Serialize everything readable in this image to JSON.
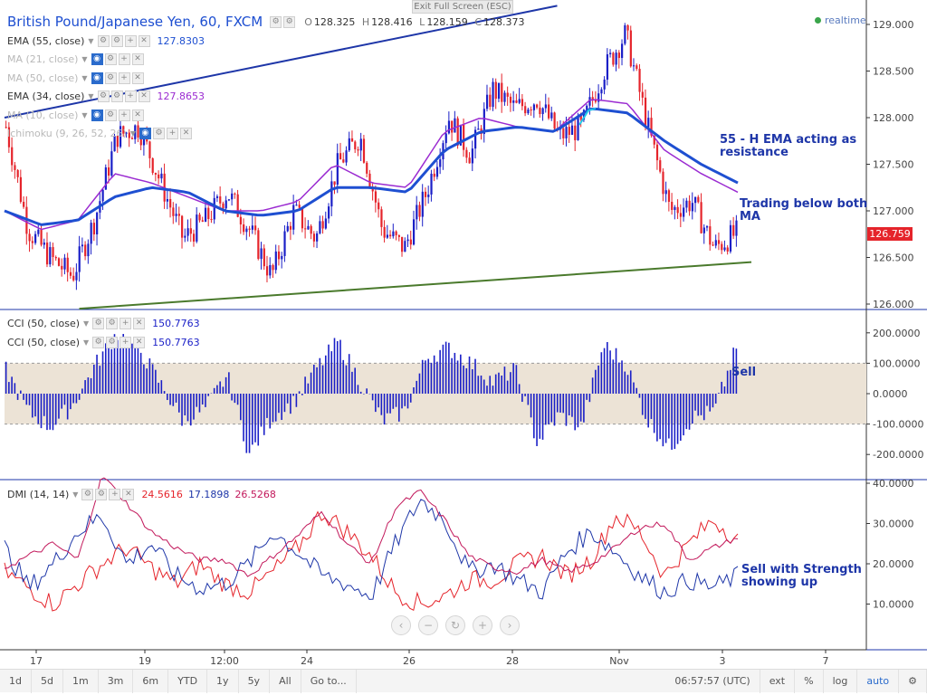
{
  "header": {
    "title": "British Pound/Japanese Yen, 60, FXCM",
    "ohlc": [
      {
        "k": "O",
        "v": "128.325"
      },
      {
        "k": "H",
        "v": "128.416"
      },
      {
        "k": "L",
        "v": "128.159"
      },
      {
        "k": "C",
        "v": "128.373"
      }
    ],
    "exit_fullscreen": "Exit Full Screen (ESC)",
    "realtime": "realtime",
    "last_price": "126.759"
  },
  "legend": [
    {
      "name": "EMA (55, close)",
      "value": "127.8303",
      "color": "#1e4fd1",
      "dim": false
    },
    {
      "name": "MA (21, close)",
      "value": "",
      "color": "#999999",
      "dim": true
    },
    {
      "name": "MA (50, close)",
      "value": "",
      "color": "#999999",
      "dim": true
    },
    {
      "name": "EMA (34, close)",
      "value": "127.8653",
      "color": "#9b2bd1",
      "dim": false
    },
    {
      "name": "MA (10, close)",
      "value": "",
      "color": "#999999",
      "dim": true
    },
    {
      "name": "Ichimoku (9, 26, 52, 26)",
      "value": "",
      "color": "#999999",
      "dim": true
    }
  ],
  "cci_legend": [
    {
      "name": "CCI (50, close)",
      "value": "150.7763"
    },
    {
      "name": "CCI (50, close)",
      "value": "150.7763"
    }
  ],
  "dmi_legend": {
    "name": "DMI (14, 14)",
    "values": [
      {
        "v": "24.5616",
        "color": "#e5242b"
      },
      {
        "v": "17.1898",
        "color": "#1e36a8"
      },
      {
        "v": "26.5268",
        "color": "#c2185b"
      }
    ]
  },
  "annotations": {
    "ema_resistance": [
      "55 - H EMA acting as",
      "resistance"
    ],
    "below_ma": [
      "Trading below both",
      "MA"
    ],
    "cci_sell": "Sell",
    "dmi_sell": [
      "Sell with Strength",
      "showing up"
    ]
  },
  "bottom_bar": {
    "ranges": [
      "1d",
      "5d",
      "1m",
      "3m",
      "6m",
      "YTD",
      "1y",
      "5y",
      "All",
      "Go to..."
    ],
    "clock": "06:57:57 (UTC)",
    "right": [
      "ext",
      "%",
      "log",
      "auto"
    ]
  },
  "chart_data": [
    {
      "type": "candlestick",
      "title": "British Pound/Japanese Yen, 60, FXCM",
      "ylim": [
        126.0,
        129.0
      ],
      "yticks": [
        "129.000",
        "128.500",
        "128.000",
        "127.500",
        "127.000",
        "126.500",
        "126.000"
      ],
      "xticks": [
        "17",
        "19",
        "12:00",
        "24",
        "26",
        "28",
        "Nov",
        "3",
        "7"
      ],
      "close_path": [
        127.9,
        126.8,
        126.5,
        126.3,
        126.9,
        127.8,
        127.9,
        127.3,
        126.7,
        126.9,
        127.2,
        126.8,
        126.3,
        127.0,
        126.7,
        127.5,
        127.8,
        126.8,
        126.6,
        127.2,
        128.0,
        127.6,
        128.3,
        128.1,
        128.2,
        127.8,
        127.9,
        128.5,
        128.9,
        127.9,
        127.0,
        127.1,
        126.6,
        126.76
      ],
      "ema55_path": [
        127.0,
        126.85,
        126.9,
        127.15,
        127.25,
        127.2,
        127.0,
        126.95,
        127.0,
        127.25,
        127.25,
        127.2,
        127.65,
        127.85,
        127.9,
        127.85,
        128.1,
        128.05,
        127.75,
        127.5,
        127.3
      ],
      "ema34_path": [
        127.0,
        126.8,
        126.9,
        127.4,
        127.3,
        127.15,
        127.0,
        127.0,
        127.1,
        127.5,
        127.3,
        127.25,
        127.85,
        128.0,
        127.9,
        127.85,
        128.2,
        128.15,
        127.65,
        127.4,
        127.2
      ],
      "series": [
        {
          "name": "EMA (55, close)",
          "color": "#1e4fd1",
          "last": 127.8303
        },
        {
          "name": "EMA (34, close)",
          "color": "#9b2bd1",
          "last": 127.8653
        }
      ],
      "trendlines": [
        {
          "color": "#1e36a8",
          "from": [
            0,
            128.0
          ],
          "to": [
            0.74,
            129.2
          ]
        },
        {
          "color": "#4a7a2c",
          "from": [
            0.1,
            125.95
          ],
          "to": [
            1.0,
            126.45
          ]
        }
      ],
      "last_price": 126.759
    },
    {
      "type": "bar",
      "title": "CCI (50, close)",
      "ylim": [
        -270,
        250
      ],
      "yticks": [
        "200.0000",
        "100.0000",
        "0.0000",
        "-100.0000",
        "-200.0000"
      ],
      "band": [
        -100,
        100
      ],
      "color": "#1a1fc7",
      "values_path": [
        80,
        -60,
        -110,
        -40,
        90,
        200,
        150,
        30,
        -90,
        -50,
        60,
        -200,
        -80,
        -30,
        80,
        170,
        40,
        -90,
        -60,
        120,
        150,
        100,
        40,
        80,
        -160,
        -70,
        -110,
        160,
        100,
        -90,
        -180,
        -80,
        -60,
        150
      ],
      "last": 150.7763
    },
    {
      "type": "line",
      "title": "DMI (14, 14)",
      "ylim": [
        2,
        45
      ],
      "yticks": [
        "40.0000",
        "30.0000",
        "20.0000",
        "10.0000"
      ],
      "series": [
        {
          "name": "+DI",
          "color": "#e5242b",
          "values_path": [
            18,
            14,
            10,
            15,
            20,
            24,
            19,
            15,
            20,
            15,
            13,
            18,
            24,
            33,
            28,
            22,
            13,
            10,
            12,
            16,
            16,
            20,
            22,
            17,
            21,
            32,
            28,
            17,
            25,
            31,
            26
          ]
        },
        {
          "name": "-DI",
          "color": "#1e36a8",
          "values_path": [
            24,
            14,
            20,
            28,
            32,
            20,
            25,
            17,
            14,
            15,
            20,
            28,
            23,
            17,
            15,
            12,
            25,
            36,
            31,
            18,
            20,
            16,
            13,
            23,
            28,
            23,
            17,
            13,
            16,
            14,
            17
          ]
        },
        {
          "name": "ADX",
          "color": "#c2185b",
          "values_path": [
            19,
            22,
            25,
            21,
            42,
            35,
            28,
            24,
            21,
            21,
            17,
            22,
            27,
            33,
            25,
            20,
            34,
            38,
            31,
            22,
            19,
            18,
            21,
            18,
            20,
            24,
            29,
            30,
            21,
            24,
            26.5
          ]
        }
      ]
    }
  ]
}
